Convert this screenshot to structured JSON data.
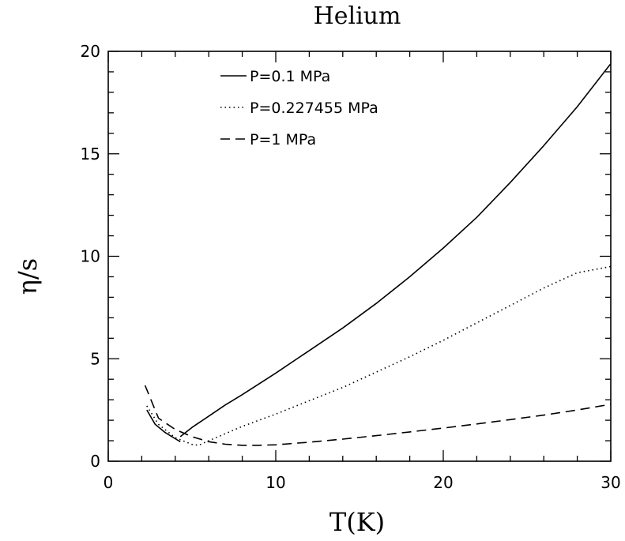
{
  "chart_data": {
    "type": "line",
    "title": "Helium",
    "xlabel": "T(K)",
    "ylabel": "η/s",
    "xlim": [
      0,
      30
    ],
    "ylim": [
      0,
      20
    ],
    "x_ticks": [
      0,
      10,
      20,
      30
    ],
    "y_ticks": [
      0,
      5,
      10,
      15,
      20
    ],
    "x_tick_labels": [
      "0",
      "10",
      "20",
      "30"
    ],
    "y_tick_labels": [
      "0",
      "5",
      "10",
      "15",
      "20"
    ],
    "grid": false,
    "legend_position": "top-left-center",
    "series": [
      {
        "name": "P=0.1 MPa",
        "style": "solid",
        "segments": [
          {
            "x": [
              2.3,
              2.8,
              3.4,
              4.0,
              4.3
            ],
            "y": [
              2.5,
              1.8,
              1.4,
              1.1,
              0.95
            ]
          },
          {
            "x": [
              4.3,
              5,
              6,
              7,
              8,
              10,
              12,
              14,
              16,
              18,
              20,
              22,
              24,
              26,
              28,
              30
            ],
            "y": [
              1.2,
              1.65,
              2.2,
              2.75,
              3.25,
              4.3,
              5.4,
              6.5,
              7.7,
              9.0,
              10.4,
              11.9,
              13.6,
              15.4,
              17.3,
              19.4
            ]
          }
        ]
      },
      {
        "name": "P=0.227455 MPa",
        "style": "dotted",
        "segments": [
          {
            "x": [
              2.3,
              3,
              4,
              5,
              5.4,
              6,
              7,
              8,
              10,
              12,
              14,
              16,
              18,
              20,
              22,
              24,
              26,
              28,
              30
            ],
            "y": [
              2.7,
              1.8,
              1.15,
              0.82,
              0.78,
              1.0,
              1.35,
              1.7,
              2.3,
              2.95,
              3.6,
              4.35,
              5.1,
              5.9,
              6.75,
              7.6,
              8.45,
              9.2,
              9.5
            ]
          }
        ]
      },
      {
        "name": "P=1 MPa",
        "style": "dashed",
        "segments": [
          {
            "x": [
              2.2,
              3,
              4,
              5,
              6,
              7,
              8,
              9,
              10,
              12,
              14,
              16,
              18,
              20,
              22,
              24,
              26,
              28,
              30
            ],
            "y": [
              3.7,
              2.1,
              1.55,
              1.2,
              0.95,
              0.83,
              0.78,
              0.78,
              0.8,
              0.93,
              1.08,
              1.25,
              1.43,
              1.62,
              1.82,
              2.03,
              2.25,
              2.5,
              2.78
            ]
          }
        ]
      }
    ]
  }
}
